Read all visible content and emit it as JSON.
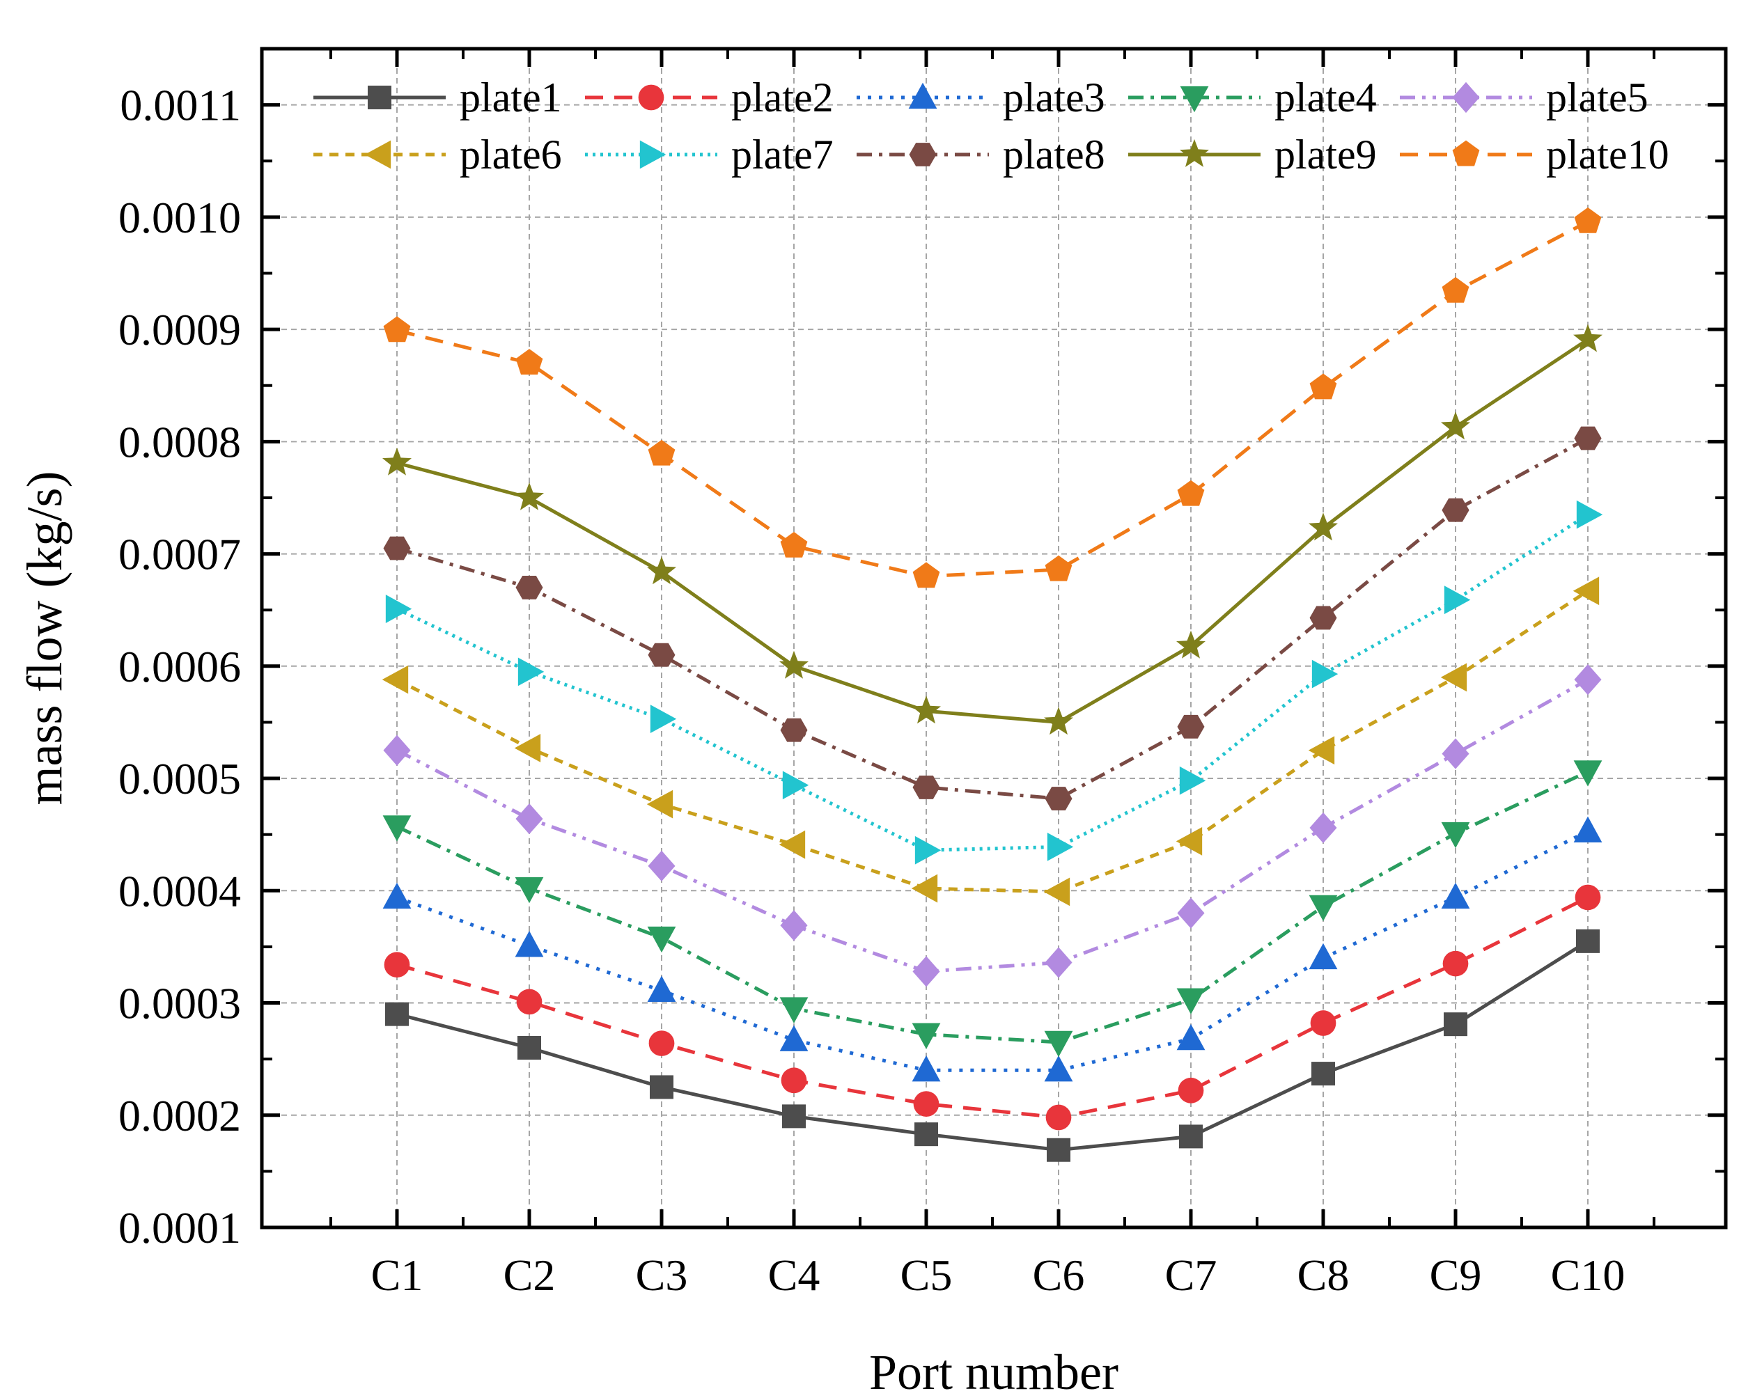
{
  "chart_data": {
    "type": "line",
    "xlabel": "Port number",
    "ylabel": "mass flow (kg/s)",
    "categories": [
      "C1",
      "C2",
      "C3",
      "C4",
      "C5",
      "C6",
      "C7",
      "C8",
      "C9",
      "C10"
    ],
    "ylim": [
      0.0001,
      0.00115
    ],
    "yticks": [
      0.0001,
      0.0002,
      0.0003,
      0.0004,
      0.0005,
      0.0006,
      0.0007,
      0.0008,
      0.0009,
      0.001,
      0.0011
    ],
    "ytick_labels": [
      "0.0001",
      "0.0002",
      "0.0003",
      "0.0004",
      "0.0005",
      "0.0006",
      "0.0007",
      "0.0008",
      "0.0009",
      "0.0010",
      "0.0011"
    ],
    "grid": true,
    "legend": "top, inside, 5 columns",
    "series": [
      {
        "name": "plate1",
        "color": "#4d4d4d",
        "marker": "square",
        "dash": "solid",
        "values": [
          0.00029,
          0.00026,
          0.000225,
          0.000199,
          0.000183,
          0.000169,
          0.000181,
          0.000237,
          0.000281,
          0.000355
        ]
      },
      {
        "name": "plate2",
        "color": "#e8353b",
        "marker": "circle",
        "dash": "dash",
        "values": [
          0.000334,
          0.000301,
          0.000264,
          0.000231,
          0.00021,
          0.000198,
          0.000222,
          0.000282,
          0.000335,
          0.000394
        ]
      },
      {
        "name": "plate3",
        "color": "#1f69d3",
        "marker": "triangle-up",
        "dash": "dot",
        "values": [
          0.000394,
          0.000351,
          0.000311,
          0.000267,
          0.00024,
          0.00024,
          0.000268,
          0.00034,
          0.000394,
          0.000453
        ]
      },
      {
        "name": "plate4",
        "color": "#2a9d5f",
        "marker": "triangle-down",
        "dash": "dashdot",
        "values": [
          0.000457,
          0.000402,
          0.000358,
          0.000295,
          0.000272,
          0.000265,
          0.000303,
          0.000386,
          0.000451,
          0.000506
        ]
      },
      {
        "name": "plate5",
        "color": "#b28ae0",
        "marker": "diamond",
        "dash": "dashdotdot",
        "values": [
          0.000525,
          0.000464,
          0.000422,
          0.000369,
          0.000328,
          0.000336,
          0.00038,
          0.000456,
          0.000522,
          0.000588
        ]
      },
      {
        "name": "plate6",
        "color": "#c9a01c",
        "marker": "triangle-left",
        "dash": "shortdash",
        "values": [
          0.000588,
          0.000527,
          0.000477,
          0.000441,
          0.000402,
          0.000399,
          0.000444,
          0.000525,
          0.00059,
          0.000667
        ]
      },
      {
        "name": "plate7",
        "color": "#22c4cf",
        "marker": "triangle-right",
        "dash": "shortdot",
        "values": [
          0.000651,
          0.000595,
          0.000553,
          0.000494,
          0.000436,
          0.000439,
          0.000498,
          0.000593,
          0.000659,
          0.000735
        ]
      },
      {
        "name": "plate8",
        "color": "#7a4a44",
        "marker": "hexagon",
        "dash": "dashdot",
        "values": [
          0.000705,
          0.00067,
          0.00061,
          0.000543,
          0.000492,
          0.000482,
          0.000546,
          0.000643,
          0.000739,
          0.000803
        ]
      },
      {
        "name": "plate9",
        "color": "#7f7f1b",
        "marker": "star",
        "dash": "solid",
        "values": [
          0.000781,
          0.00075,
          0.000684,
          0.0006,
          0.00056,
          0.00055,
          0.000618,
          0.000723,
          0.000813,
          0.000891
        ]
      },
      {
        "name": "plate10",
        "color": "#f07a18",
        "marker": "pentagon",
        "dash": "dash",
        "values": [
          0.000899,
          0.00087,
          0.000789,
          0.000707,
          0.00068,
          0.000686,
          0.000753,
          0.000848,
          0.000934,
          0.000996
        ]
      }
    ]
  }
}
